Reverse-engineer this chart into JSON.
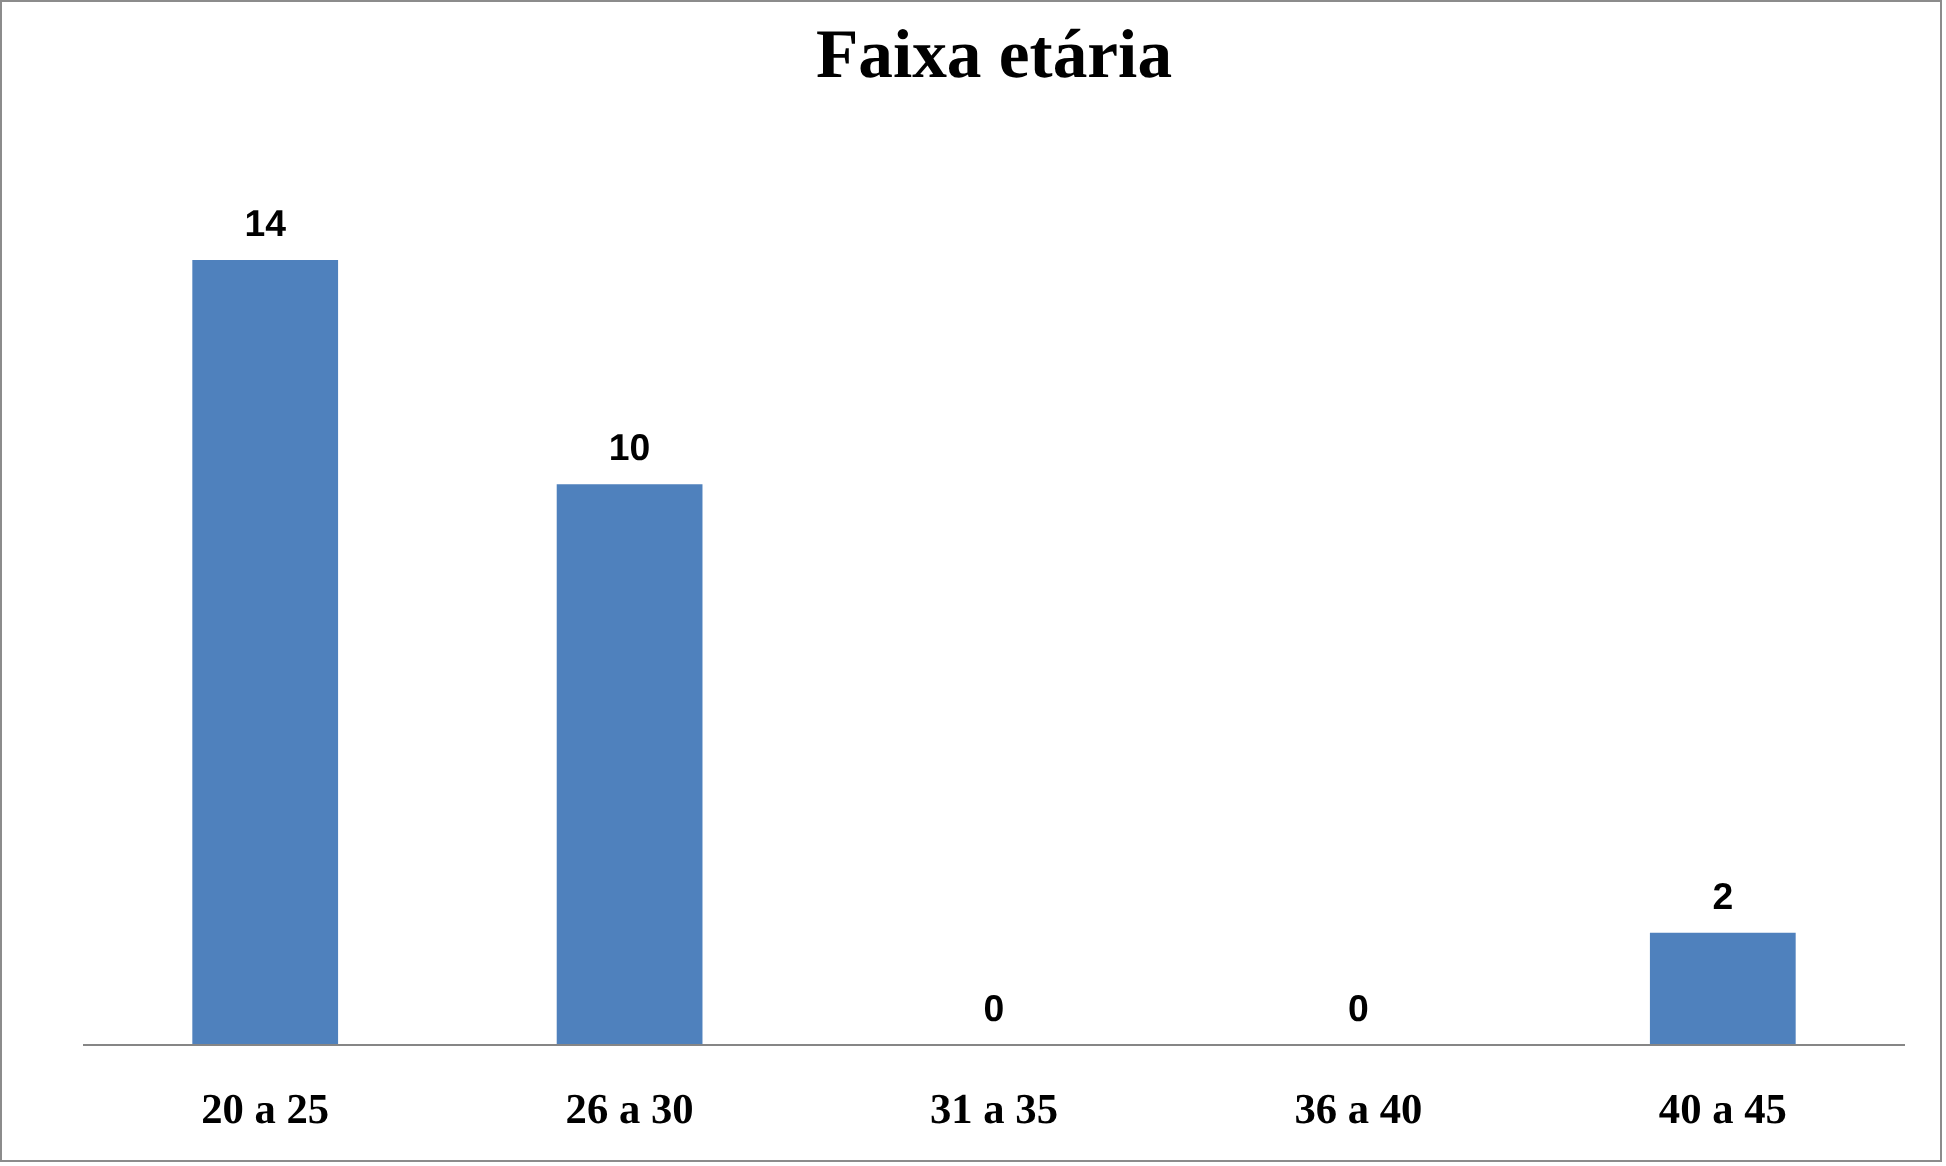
{
  "chart_data": {
    "type": "bar",
    "title": "Faixa etária",
    "categories": [
      "20 a 25",
      "26 a 30",
      "31 a 35",
      "36 a 40",
      "40 a 45"
    ],
    "values": [
      14,
      10,
      0,
      0,
      2
    ],
    "color": "#4f81bd",
    "data_labels": true
  }
}
